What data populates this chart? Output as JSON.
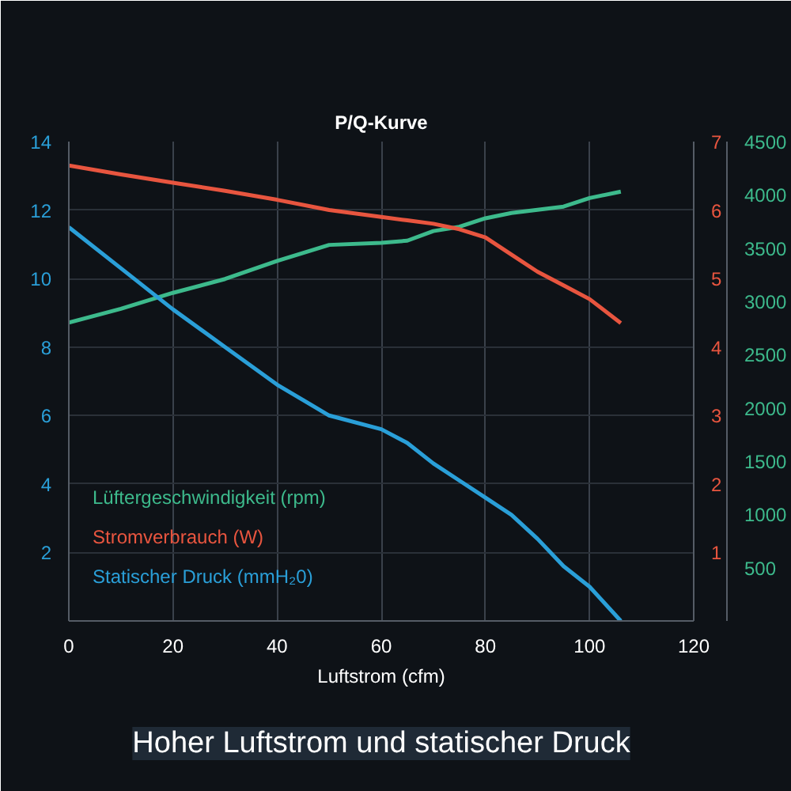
{
  "chart_data": {
    "type": "line",
    "title": "P/Q-Kurve",
    "xlabel": "Luftstrom (cfm)",
    "x": [
      0,
      10,
      20,
      30,
      40,
      50,
      60,
      65,
      70,
      75,
      80,
      85,
      90,
      95,
      100,
      106
    ],
    "series": [
      {
        "name": "Lüftergeschwindigkeit (rpm)",
        "color": "#3dba8c",
        "axis": "y3",
        "values": [
          2800,
          2930,
          3080,
          3210,
          3380,
          3530,
          3550,
          3570,
          3660,
          3700,
          3780,
          3830,
          3860,
          3890,
          3970,
          4030
        ]
      },
      {
        "name": "Stromverbrauch (W)",
        "color": "#e8553f",
        "axis": "y2",
        "values": [
          6.65,
          6.52,
          6.4,
          6.28,
          6.15,
          6.0,
          5.9,
          5.85,
          5.8,
          5.72,
          5.6,
          5.35,
          5.1,
          4.9,
          4.7,
          4.35
        ]
      },
      {
        "name": "Statischer Druck (mmH₂0)",
        "color": "#2a9fd8",
        "values": [
          11.5,
          10.3,
          9.1,
          8.0,
          6.9,
          6.0,
          5.6,
          5.2,
          4.6,
          4.1,
          3.6,
          3.1,
          2.4,
          1.6,
          1.0,
          0.0
        ]
      }
    ],
    "xlim": [
      0,
      120
    ],
    "xticks": [
      0,
      20,
      40,
      60,
      80,
      100,
      120
    ],
    "ylim": [
      0,
      14
    ],
    "yticks": [
      2,
      4,
      6,
      8,
      10,
      12,
      14
    ],
    "y2lim": [
      0,
      7
    ],
    "y2ticks": [
      1,
      2,
      3,
      4,
      5,
      6,
      7
    ],
    "y3lim": [
      0,
      4500
    ],
    "y3ticks": [
      500,
      1000,
      1500,
      2000,
      2500,
      3000,
      3500,
      4000,
      4500
    ],
    "grid": true,
    "legend": "bottom left",
    "marker": "none",
    "line_style": "solid",
    "annotations": [
      "Hoher Luftstrom und statischer Druck"
    ]
  }
}
